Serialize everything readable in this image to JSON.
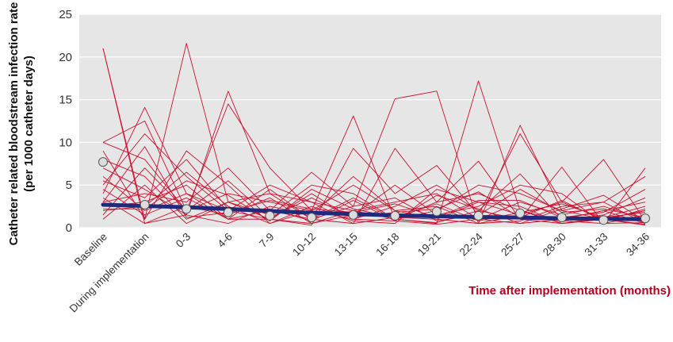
{
  "chart_data": {
    "type": "line",
    "title": "",
    "xlabel": "Time after implementation (months)",
    "ylabel_line1": "Catheter related bloodstream infection rate",
    "ylabel_line2": "(per 1000 catheter days)",
    "ylim": [
      0,
      25
    ],
    "yticks": [
      0,
      5,
      10,
      15,
      20,
      25
    ],
    "grid": true,
    "categories": [
      "Baseline",
      "During implementation",
      "0-3",
      "4-6",
      "7-9",
      "10-12",
      "13-15",
      "16-18",
      "19-21",
      "22-24",
      "25-27",
      "28-30",
      "31-33",
      "34-36"
    ],
    "colors": {
      "plot_bg": "#e6e6e6",
      "hospital_lines": "#c8102e",
      "trend_line": "#1f2a7c",
      "mean_marker": "#dcdcdc"
    },
    "series": [
      {
        "role": "mean",
        "values": [
          7.7,
          2.7,
          2.2,
          1.8,
          1.4,
          1.2,
          1.5,
          1.4,
          1.9,
          1.4,
          1.7,
          1.2,
          0.9,
          1.1
        ]
      },
      {
        "role": "trend",
        "values": [
          2.7,
          2.55,
          2.4,
          2.2,
          1.95,
          1.75,
          1.6,
          1.45,
          1.35,
          1.25,
          1.2,
          1.1,
          1.05,
          1.0
        ]
      },
      {
        "role": "hospital",
        "values": [
          21.0,
          1.0,
          21.6,
          3.0,
          1.0,
          0.5,
          2.0,
          1.0,
          0.6,
          2.0,
          1.0,
          0.5,
          1.0,
          0.4
        ]
      },
      {
        "role": "hospital",
        "values": [
          21.0,
          0.5,
          1.5,
          16.0,
          4.0,
          1.0,
          0.5,
          1.2,
          1.0,
          0.5,
          1.5,
          0.8,
          0.5,
          0.6
        ]
      },
      {
        "role": "hospital",
        "values": [
          10.0,
          12.5,
          2.0,
          14.5,
          7.0,
          2.0,
          1.0,
          0.8,
          0.4,
          1.0,
          0.5,
          1.0,
          2.0,
          0.5
        ]
      },
      {
        "role": "hospital",
        "values": [
          4.0,
          14.1,
          4.0,
          1.0,
          2.0,
          6.5,
          2.5,
          15.1,
          16.0,
          0.5,
          12.0,
          2.0,
          1.0,
          0.3
        ]
      },
      {
        "role": "hospital",
        "values": [
          9.0,
          1.0,
          9.0,
          5.0,
          0.5,
          2.0,
          13.1,
          1.0,
          0.5,
          17.2,
          2.0,
          0.5,
          1.0,
          2.0
        ]
      },
      {
        "role": "hospital",
        "values": [
          5.0,
          11.0,
          6.0,
          2.0,
          1.0,
          0.3,
          9.3,
          4.0,
          7.3,
          1.5,
          11.0,
          3.0,
          8.0,
          0.8
        ]
      },
      {
        "role": "hospital",
        "values": [
          8.0,
          6.0,
          1.0,
          3.0,
          4.0,
          3.0,
          0.5,
          9.3,
          3.0,
          7.8,
          1.0,
          7.1,
          0.5,
          7.0
        ]
      },
      {
        "role": "hospital",
        "values": [
          3.0,
          4.0,
          3.0,
          7.0,
          2.0,
          1.0,
          3.5,
          1.0,
          2.0,
          5.0,
          4.0,
          2.0,
          3.0,
          6.0
        ]
      },
      {
        "role": "hospital",
        "values": [
          2.5,
          3.0,
          5.0,
          1.0,
          1.0,
          4.0,
          1.0,
          2.5,
          5.0,
          2.0,
          6.3,
          1.0,
          2.0,
          3.0
        ]
      },
      {
        "role": "hospital",
        "values": [
          10.0,
          8.0,
          2.0,
          4.0,
          3.0,
          2.0,
          5.0,
          2.0,
          1.0,
          3.0,
          1.5,
          3.0,
          1.0,
          2.0
        ]
      },
      {
        "role": "hospital",
        "values": [
          6.0,
          2.0,
          4.0,
          2.0,
          5.0,
          3.0,
          2.0,
          3.0,
          4.0,
          1.0,
          3.0,
          1.5,
          2.5,
          1.0
        ]
      },
      {
        "role": "hospital",
        "values": [
          1.0,
          5.0,
          0.5,
          3.0,
          1.5,
          5.0,
          4.0,
          1.0,
          3.0,
          4.0,
          2.0,
          0.8,
          1.5,
          3.5
        ]
      },
      {
        "role": "hospital",
        "values": [
          3.5,
          0.5,
          2.5,
          1.5,
          3.5,
          0.5,
          1.5,
          5.0,
          1.5,
          2.5,
          5.0,
          4.0,
          0.5,
          1.5
        ]
      },
      {
        "role": "hospital",
        "values": [
          7.0,
          4.5,
          1.5,
          0.5,
          2.5,
          1.5,
          6.0,
          2.0,
          2.5,
          0.5,
          0.8,
          2.5,
          3.0,
          0.5
        ]
      },
      {
        "role": "hospital",
        "values": [
          2.0,
          2.5,
          6.5,
          2.5,
          0.5,
          2.5,
          0.8,
          0.5,
          4.5,
          3.0,
          2.5,
          0.5,
          1.2,
          2.5
        ]
      },
      {
        "role": "hospital",
        "values": [
          4.5,
          1.5,
          3.5,
          1.0,
          4.5,
          1.0,
          2.5,
          3.5,
          0.8,
          1.5,
          4.5,
          1.8,
          2.2,
          1.2
        ]
      },
      {
        "role": "hospital",
        "values": [
          1.5,
          7.0,
          2.0,
          5.5,
          1.2,
          3.5,
          1.2,
          1.8,
          2.2,
          4.2,
          1.2,
          3.2,
          0.8,
          2.2
        ]
      },
      {
        "role": "hospital",
        "values": [
          5.5,
          3.5,
          8.0,
          2.2,
          2.2,
          0.8,
          3.2,
          0.8,
          3.8,
          2.2,
          0.5,
          2.2,
          3.8,
          0.8
        ]
      },
      {
        "role": "hospital",
        "values": [
          3.0,
          9.5,
          1.2,
          1.8,
          3.2,
          2.2,
          1.8,
          2.8,
          1.2,
          3.2,
          3.2,
          1.2,
          1.8,
          4.5
        ]
      },
      {
        "role": "hospital",
        "values": [
          2.2,
          2.2,
          5.5,
          3.8,
          0.8,
          4.5,
          2.2,
          1.2,
          2.8,
          0.8,
          1.8,
          2.8,
          1.2,
          1.8
        ]
      }
    ]
  }
}
